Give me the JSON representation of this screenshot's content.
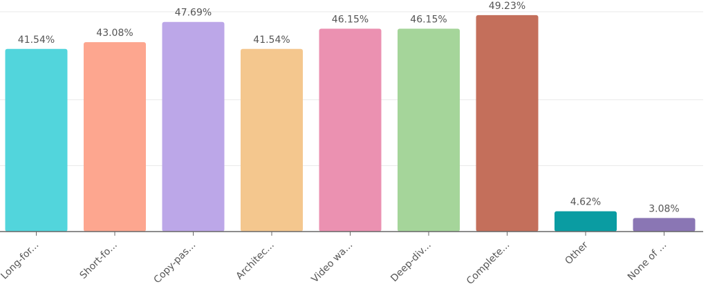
{
  "chart_data": {
    "type": "bar",
    "categories": [
      "Long-for...",
      "Short-fo...",
      "Copy-pas...",
      "Architec...",
      "Video wa...",
      "Deep-div...",
      "Complete...",
      "Other",
      "None of ..."
    ],
    "values": [
      41.54,
      43.08,
      47.69,
      41.54,
      46.15,
      46.15,
      49.23,
      4.62,
      3.08
    ],
    "value_labels": [
      "41.54%",
      "43.08%",
      "47.69%",
      "41.54%",
      "46.15%",
      "46.15%",
      "49.23%",
      "4.62%",
      "3.08%"
    ],
    "colors": [
      "#52d5dc",
      "#fda68f",
      "#bca7e8",
      "#f4c78e",
      "#eb91b1",
      "#a5d59a",
      "#c46f5b",
      "#0a9ca2",
      "#8a76b4"
    ],
    "ylim": [
      0,
      50
    ],
    "yticks": [
      15,
      30,
      50
    ],
    "grid": true
  }
}
